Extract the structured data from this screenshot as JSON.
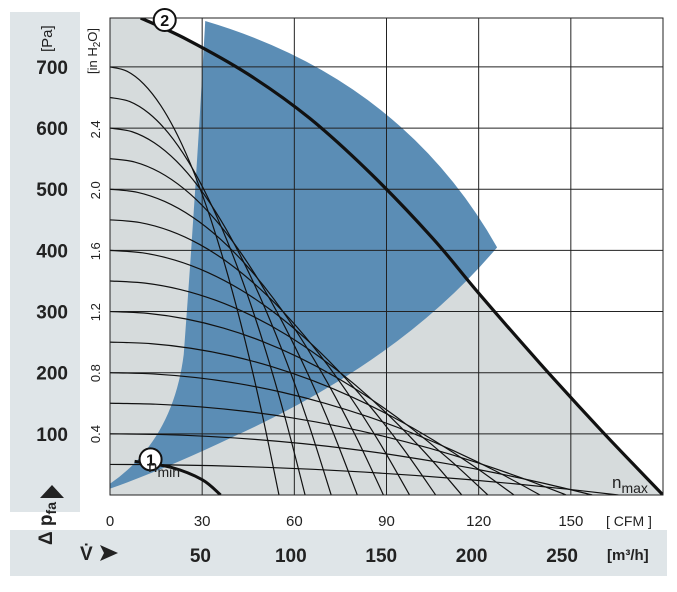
{
  "chart_data": {
    "type": "line",
    "y_axis_pa": {
      "label": "Δ p",
      "label_sub": "fa",
      "unit": "[Pa]",
      "ticks": [
        "100",
        "200",
        "300",
        "400",
        "500",
        "600",
        "700"
      ],
      "ylim": [
        0,
        780
      ]
    },
    "y_axis_inh2o": {
      "unit": "[in H",
      "unit_sub": "2",
      "unit_end": "O]",
      "ticks": [
        "0.4",
        "0.8",
        "1.2",
        "1.6",
        "2.0",
        "2.4"
      ]
    },
    "x_axis_cfm": {
      "unit": "[ CFM ]",
      "ticks": [
        "0",
        "30",
        "60",
        "90",
        "120",
        "150"
      ],
      "xlim": [
        0,
        180
      ]
    },
    "x_axis_m3h": {
      "label": "V̇",
      "unit": "[m³/h]",
      "ticks": [
        "50",
        "100",
        "150",
        "200",
        "250"
      ]
    },
    "series": [
      {
        "name": "n max",
        "marker": "2",
        "x": [
          10,
          25,
          45,
          65,
          85,
          105,
          120,
          140,
          160,
          180
        ],
        "y": [
          780,
          745,
          688,
          616,
          525,
          420,
          330,
          215,
          105,
          0
        ]
      },
      {
        "name": "n min",
        "marker": "1",
        "x": [
          8,
          20,
          30,
          36
        ],
        "y": [
          55,
          45,
          25,
          0
        ]
      }
    ],
    "system_curves": {
      "count": 14,
      "note": "background system resistance curves"
    },
    "operating_region": {
      "color": "#5b8db5",
      "description": "recommended operating range"
    },
    "grid": true,
    "colors": {
      "operating_area": "#5b8db5",
      "curve_area": "#d6dbdc",
      "band": "#dfe5e8",
      "curve": "#111111"
    }
  },
  "labels": {
    "n_min_text": "n",
    "n_min_sub": "min",
    "n_max_text": "n",
    "n_max_sub": "max",
    "marker_1": "1",
    "marker_2": "2"
  }
}
